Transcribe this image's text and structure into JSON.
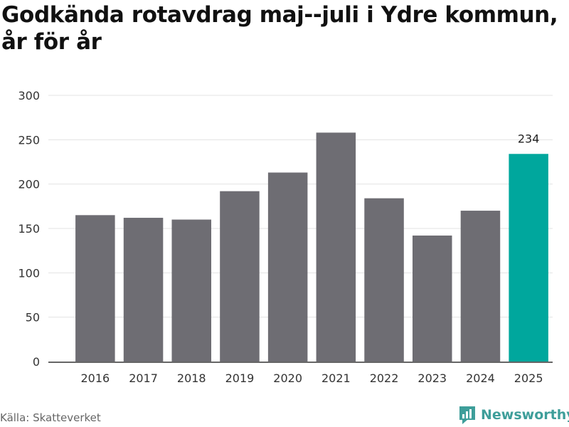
{
  "title": "Godkända rotavdrag maj--juli i Ydre kommun, år för år",
  "source": "Källa: Skatteverket",
  "brand": {
    "name": "Newsworthy",
    "icon": "newsworthy-logo-icon"
  },
  "colors": {
    "bar": "#6e6d73",
    "highlight": "#00a79d",
    "grid": "#e3e3e3",
    "axis": "#333333"
  },
  "chart_data": {
    "type": "bar",
    "title": "Godkända rotavdrag maj--juli i Ydre kommun, år för år",
    "xlabel": "",
    "ylabel": "",
    "categories": [
      "2016",
      "2017",
      "2018",
      "2019",
      "2020",
      "2021",
      "2022",
      "2023",
      "2024",
      "2025"
    ],
    "values": [
      165,
      162,
      160,
      192,
      213,
      258,
      184,
      142,
      170,
      234
    ],
    "highlight_index": 9,
    "data_labels": [
      {
        "index": 9,
        "text": "234"
      }
    ],
    "ylim": [
      0,
      300
    ],
    "yticks": [
      0,
      50,
      100,
      150,
      200,
      250,
      300
    ],
    "grid": true,
    "legend": "none"
  }
}
